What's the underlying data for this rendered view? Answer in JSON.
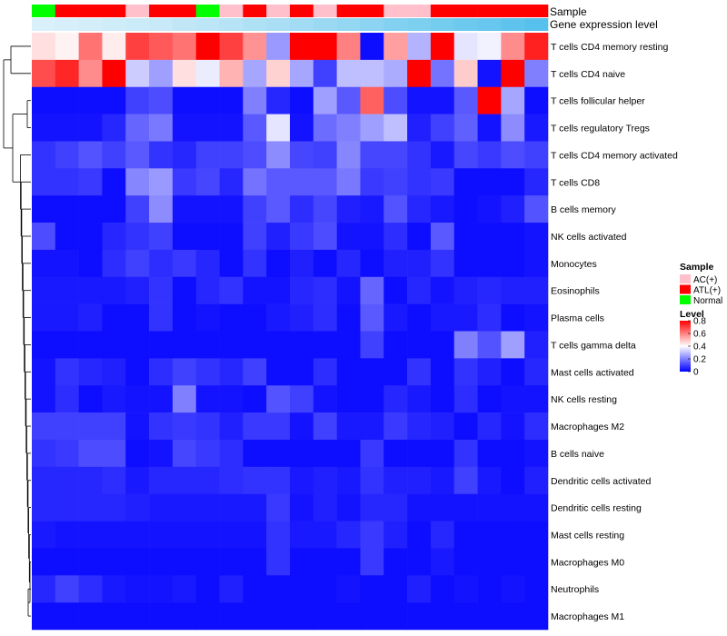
{
  "chart_data": {
    "type": "heatmap",
    "annotations": {
      "sample_label": "Sample",
      "expression_label": "Gene expression level"
    },
    "sample_groups": [
      "Normal",
      "ATL(+)",
      "ATL(+)",
      "ATL(+)",
      "AC(+)",
      "ATL(+)",
      "ATL(+)",
      "Normal",
      "AC(+)",
      "ATL(+)",
      "AC(+)",
      "ATL(+)",
      "AC(+)",
      "ATL(+)",
      "ATL(+)",
      "AC(+)",
      "AC(+)",
      "ATL(+)",
      "ATL(+)",
      "ATL(+)",
      "ATL(+)",
      "ATL(+)"
    ],
    "expression_levels": [
      0.0,
      0.02,
      0.05,
      0.08,
      0.11,
      0.14,
      0.18,
      0.22,
      0.26,
      0.31,
      0.36,
      0.41,
      0.46,
      0.52,
      0.57,
      0.63,
      0.68,
      0.74,
      0.79,
      0.84,
      0.9,
      0.96
    ],
    "rows": [
      {
        "label": "T cells CD4 memory resting",
        "values": [
          0.45,
          0.42,
          0.62,
          0.43,
          0.7,
          0.66,
          0.62,
          0.82,
          0.7,
          0.57,
          0.24,
          0.82,
          0.82,
          0.6,
          0.02,
          0.55,
          0.28,
          0.85,
          0.36,
          0.38,
          0.58,
          0.75
        ]
      },
      {
        "label": "T cells CD4 naive",
        "values": [
          0.68,
          0.74,
          0.58,
          0.82,
          0.32,
          0.25,
          0.45,
          0.37,
          0.52,
          0.26,
          0.47,
          0.26,
          0.1,
          0.3,
          0.3,
          0.27,
          0.85,
          0.18,
          0.48,
          0.03,
          0.86,
          0.2
        ]
      },
      {
        "label": "T cells follicular helper",
        "values": [
          0.02,
          0.02,
          0.02,
          0.02,
          0.1,
          0.12,
          0.02,
          0.02,
          0.02,
          0.2,
          0.06,
          0.02,
          0.25,
          0.14,
          0.65,
          0.12,
          0.03,
          0.03,
          0.14,
          0.9,
          0.26,
          0.02
        ]
      },
      {
        "label": "T cells regulatory  Tregs",
        "values": [
          0.03,
          0.03,
          0.03,
          0.06,
          0.16,
          0.19,
          0.03,
          0.03,
          0.03,
          0.14,
          0.36,
          0.03,
          0.17,
          0.2,
          0.25,
          0.3,
          0.05,
          0.1,
          0.15,
          0.03,
          0.22,
          0.04
        ]
      },
      {
        "label": "T cells CD4 memory activated",
        "values": [
          0.08,
          0.1,
          0.13,
          0.1,
          0.14,
          0.08,
          0.06,
          0.1,
          0.1,
          0.12,
          0.22,
          0.11,
          0.1,
          0.21,
          0.11,
          0.11,
          0.08,
          0.04,
          0.11,
          0.09,
          0.12,
          0.1
        ]
      },
      {
        "label": "T cells CD8",
        "values": [
          0.08,
          0.08,
          0.09,
          0.02,
          0.21,
          0.24,
          0.09,
          0.11,
          0.06,
          0.18,
          0.14,
          0.14,
          0.14,
          0.19,
          0.09,
          0.1,
          0.08,
          0.09,
          0.02,
          0.02,
          0.02,
          0.06
        ]
      },
      {
        "label": "B cells memory",
        "values": [
          0.02,
          0.02,
          0.02,
          0.02,
          0.1,
          0.22,
          0.03,
          0.03,
          0.03,
          0.1,
          0.14,
          0.07,
          0.11,
          0.05,
          0.04,
          0.13,
          0.06,
          0.04,
          0.02,
          0.03,
          0.05,
          0.13
        ]
      },
      {
        "label": "NK cells activated",
        "values": [
          0.12,
          0.02,
          0.02,
          0.06,
          0.08,
          0.1,
          0.02,
          0.02,
          0.02,
          0.1,
          0.05,
          0.09,
          0.12,
          0.03,
          0.03,
          0.07,
          0.02,
          0.14,
          0.02,
          0.02,
          0.02,
          0.03
        ]
      },
      {
        "label": "Monocytes",
        "values": [
          0.03,
          0.03,
          0.02,
          0.07,
          0.1,
          0.07,
          0.09,
          0.06,
          0.02,
          0.08,
          0.02,
          0.05,
          0.02,
          0.06,
          0.02,
          0.05,
          0.05,
          0.08,
          0.02,
          0.02,
          0.02,
          0.03
        ]
      },
      {
        "label": "Eosinophils",
        "values": [
          0.04,
          0.04,
          0.04,
          0.04,
          0.05,
          0.08,
          0.02,
          0.06,
          0.08,
          0.03,
          0.03,
          0.06,
          0.07,
          0.03,
          0.16,
          0.02,
          0.06,
          0.03,
          0.05,
          0.06,
          0.05,
          0.05
        ]
      },
      {
        "label": "Plasma cells",
        "values": [
          0.04,
          0.04,
          0.05,
          0.02,
          0.02,
          0.08,
          0.02,
          0.03,
          0.02,
          0.02,
          0.04,
          0.05,
          0.07,
          0.02,
          0.14,
          0.04,
          0.02,
          0.04,
          0.04,
          0.07,
          0.02,
          0.03
        ]
      },
      {
        "label": "T cells gamma delta",
        "values": [
          0.02,
          0.02,
          0.02,
          0.02,
          0.02,
          0.02,
          0.02,
          0.02,
          0.02,
          0.02,
          0.02,
          0.02,
          0.02,
          0.02,
          0.1,
          0.02,
          0.02,
          0.02,
          0.2,
          0.13,
          0.25,
          0.05
        ]
      },
      {
        "label": "Mast cells activated",
        "values": [
          0.03,
          0.08,
          0.06,
          0.05,
          0.02,
          0.07,
          0.1,
          0.08,
          0.06,
          0.1,
          0.02,
          0.02,
          0.07,
          0.02,
          0.02,
          0.02,
          0.08,
          0.02,
          0.08,
          0.05,
          0.02,
          0.06
        ]
      },
      {
        "label": "NK cells resting",
        "values": [
          0.03,
          0.07,
          0.02,
          0.04,
          0.03,
          0.03,
          0.2,
          0.03,
          0.03,
          0.02,
          0.13,
          0.1,
          0.03,
          0.02,
          0.02,
          0.06,
          0.04,
          0.02,
          0.07,
          0.02,
          0.03,
          0.03
        ]
      },
      {
        "label": "Macrophages M2",
        "values": [
          0.1,
          0.1,
          0.1,
          0.1,
          0.03,
          0.08,
          0.09,
          0.08,
          0.05,
          0.09,
          0.09,
          0.03,
          0.1,
          0.04,
          0.04,
          0.09,
          0.06,
          0.05,
          0.02,
          0.06,
          0.03,
          0.07
        ]
      },
      {
        "label": "B cells naive",
        "values": [
          0.08,
          0.09,
          0.12,
          0.12,
          0.02,
          0.03,
          0.11,
          0.09,
          0.07,
          0.02,
          0.02,
          0.02,
          0.02,
          0.02,
          0.09,
          0.02,
          0.02,
          0.02,
          0.08,
          0.02,
          0.02,
          0.03
        ]
      },
      {
        "label": "Dendritic cells activated",
        "values": [
          0.06,
          0.06,
          0.06,
          0.07,
          0.04,
          0.06,
          0.06,
          0.06,
          0.07,
          0.08,
          0.08,
          0.04,
          0.05,
          0.04,
          0.08,
          0.05,
          0.05,
          0.04,
          0.1,
          0.04,
          0.02,
          0.05
        ]
      },
      {
        "label": "Dendritic cells resting",
        "values": [
          0.06,
          0.06,
          0.06,
          0.06,
          0.05,
          0.04,
          0.04,
          0.04,
          0.04,
          0.04,
          0.09,
          0.03,
          0.05,
          0.03,
          0.06,
          0.06,
          0.03,
          0.03,
          0.03,
          0.03,
          0.03,
          0.03
        ]
      },
      {
        "label": "Mast cells resting",
        "values": [
          0.04,
          0.03,
          0.03,
          0.03,
          0.03,
          0.03,
          0.03,
          0.03,
          0.03,
          0.03,
          0.08,
          0.04,
          0.04,
          0.06,
          0.09,
          0.05,
          0.02,
          0.06,
          0.02,
          0.02,
          0.02,
          0.02
        ]
      },
      {
        "label": "Macrophages M0",
        "values": [
          0.02,
          0.02,
          0.02,
          0.02,
          0.02,
          0.02,
          0.02,
          0.02,
          0.02,
          0.02,
          0.08,
          0.02,
          0.02,
          0.02,
          0.09,
          0.02,
          0.02,
          0.04,
          0.02,
          0.02,
          0.02,
          0.02
        ]
      },
      {
        "label": "Neutrophils",
        "values": [
          0.06,
          0.1,
          0.07,
          0.04,
          0.03,
          0.03,
          0.04,
          0.02,
          0.05,
          0.02,
          0.02,
          0.02,
          0.02,
          0.03,
          0.02,
          0.02,
          0.05,
          0.02,
          0.03,
          0.02,
          0.03,
          0.02
        ]
      },
      {
        "label": "Macrophages M1",
        "values": [
          0.02,
          0.02,
          0.02,
          0.02,
          0.02,
          0.02,
          0.02,
          0.02,
          0.02,
          0.02,
          0.02,
          0.02,
          0.02,
          0.02,
          0.02,
          0.02,
          0.02,
          0.02,
          0.02,
          0.02,
          0.02,
          0.02
        ]
      }
    ],
    "legend": {
      "sample_title": "Sample",
      "sample_entries": [
        {
          "label": "AC(+)",
          "color": "#ffc0cb"
        },
        {
          "label": "ATL(+)",
          "color": "#ff0000"
        },
        {
          "label": "Normal",
          "color": "#00ff00"
        }
      ],
      "level_title": "Level",
      "level_ticks": [
        "0.8",
        "0.6",
        "0.4",
        "0.2",
        "0"
      ],
      "level_tick_values": [
        0.8,
        0.6,
        0.4,
        0.2,
        0
      ],
      "level_range": [
        0,
        0.8
      ]
    },
    "colors": {
      "low": "#0000ff",
      "mid": "#ffffff",
      "high": "#ff0000",
      "expression_light": "#daf0fa",
      "expression_dark": "#56c1ec"
    }
  }
}
